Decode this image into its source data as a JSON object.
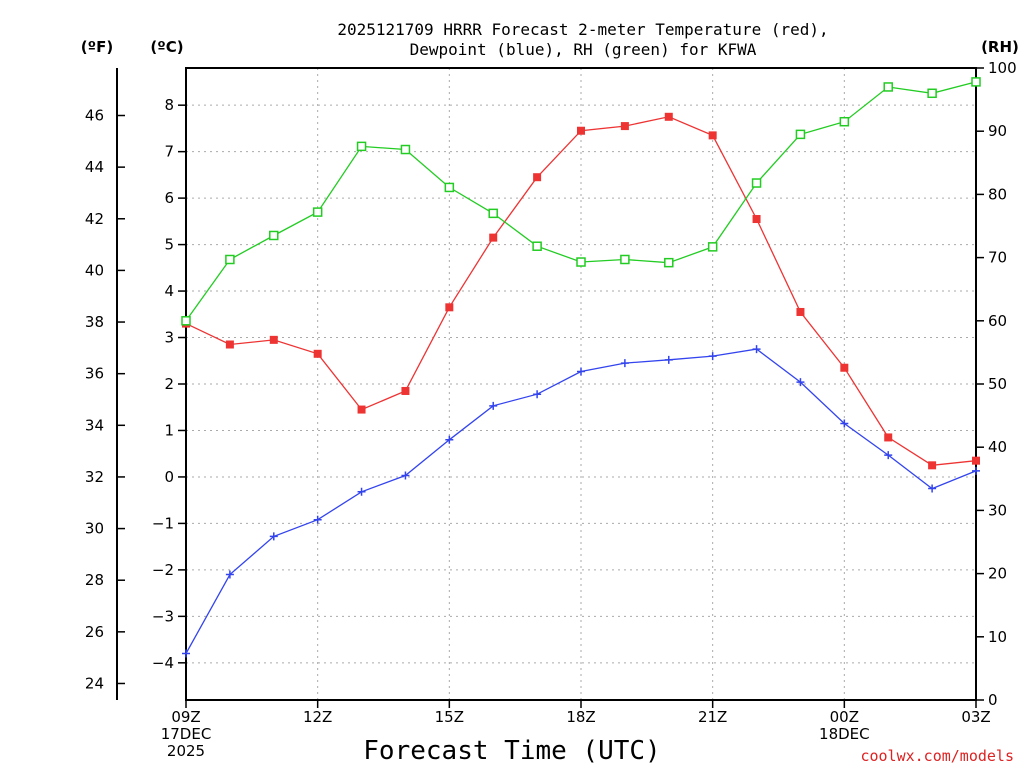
{
  "chart_data": {
    "type": "line",
    "title_line1": "2025121709 HRRR Forecast 2-meter Temperature (red),",
    "title_line2": "Dewpoint (blue), RH (green) for KFWA",
    "xlabel": "Forecast Time (UTC)",
    "credit": "coolwx.com/models",
    "unit_f": "(ºF)",
    "unit_c": "(ºC)",
    "unit_rh": "(RH)",
    "x_range": [
      0,
      18
    ],
    "x_ticks": [
      {
        "x": 0,
        "lines": [
          "09Z",
          "17DEC",
          "2025"
        ]
      },
      {
        "x": 3,
        "lines": [
          "12Z"
        ]
      },
      {
        "x": 6,
        "lines": [
          "15Z"
        ]
      },
      {
        "x": 9,
        "lines": [
          "18Z"
        ]
      },
      {
        "x": 12,
        "lines": [
          "21Z"
        ]
      },
      {
        "x": 15,
        "lines": [
          "00Z",
          "18DEC"
        ]
      },
      {
        "x": 18,
        "lines": [
          "03Z"
        ]
      }
    ],
    "ylim_c": [
      -4.8,
      8.8
    ],
    "ylim_rh": [
      0,
      100
    ],
    "ylim_f": [
      23.36,
      47.84
    ],
    "yticks_c": [
      -4,
      -3,
      -2,
      -1,
      0,
      1,
      2,
      3,
      4,
      5,
      6,
      7,
      8
    ],
    "yticks_f": [
      24,
      26,
      28,
      30,
      32,
      34,
      36,
      38,
      40,
      42,
      44,
      46
    ],
    "yticks_rh": [
      0,
      10,
      20,
      30,
      40,
      50,
      60,
      70,
      80,
      90,
      100
    ],
    "series": [
      {
        "name": "Temperature",
        "axis": "c",
        "color": "#ee3333",
        "marker": "filled-square",
        "values": [
          3.3,
          2.85,
          2.95,
          2.65,
          1.45,
          1.85,
          3.65,
          5.15,
          6.45,
          7.45,
          7.55,
          7.75,
          7.35,
          5.55,
          3.55,
          2.35,
          0.85,
          0.25,
          0.35
        ]
      },
      {
        "name": "Dewpoint",
        "axis": "c",
        "color": "#3344ee",
        "marker": "plus",
        "values": [
          -3.8,
          -2.1,
          -1.28,
          -0.92,
          -0.32,
          0.03,
          0.8,
          1.53,
          1.78,
          2.27,
          2.45,
          2.52,
          2.6,
          2.75,
          2.04,
          1.15,
          0.47,
          -0.25,
          0.13
        ]
      },
      {
        "name": "RH",
        "axis": "rh",
        "color": "#22cc22",
        "marker": "open-square",
        "values": [
          60.0,
          69.7,
          73.5,
          77.2,
          87.6,
          87.1,
          81.1,
          77.0,
          71.8,
          69.3,
          69.7,
          69.2,
          71.7,
          81.8,
          89.5,
          91.5,
          97.0,
          96.0,
          97.8
        ]
      }
    ]
  }
}
